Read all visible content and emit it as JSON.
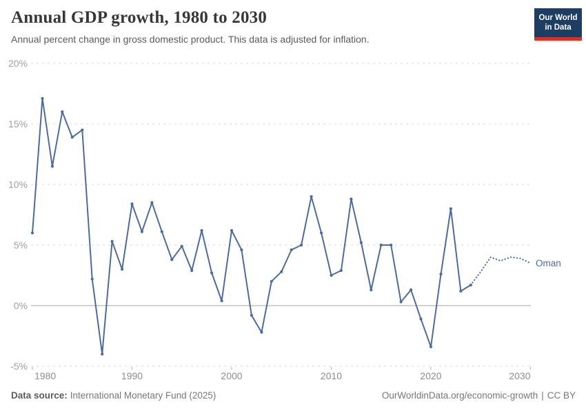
{
  "header": {
    "title": "Annual GDP growth, 1980 to 2030",
    "subtitle": "Annual percent change in gross domestic product. This data is adjusted for inflation."
  },
  "logo": {
    "line1": "Our World",
    "line2": "in Data",
    "bg_color": "#1d3d63",
    "bar_color": "#dc2f23"
  },
  "chart_data": {
    "type": "line",
    "title": "Annual GDP growth, 1980 to 2030",
    "xlabel": "",
    "ylabel": "",
    "xlim": [
      1980,
      2030
    ],
    "ylim": [
      -5,
      20
    ],
    "grid": "horizontal-dashed",
    "zero_line": true,
    "legend_position": "end-of-line-label",
    "yticks": [
      {
        "value": 20,
        "label": "20%"
      },
      {
        "value": 15,
        "label": "15%"
      },
      {
        "value": 10,
        "label": "10%"
      },
      {
        "value": 5,
        "label": "5%"
      },
      {
        "value": 0,
        "label": "0%"
      },
      {
        "value": -5,
        "label": "-5%"
      }
    ],
    "xticks": [
      1980,
      1990,
      2000,
      2010,
      2020,
      2030
    ],
    "series": [
      {
        "name": "Oman",
        "color": "#4c6b9c",
        "projection_start_year": 2024,
        "x": [
          1980,
          1981,
          1982,
          1983,
          1984,
          1985,
          1986,
          1987,
          1988,
          1989,
          1990,
          1991,
          1992,
          1993,
          1994,
          1995,
          1996,
          1997,
          1998,
          1999,
          2000,
          2001,
          2002,
          2003,
          2004,
          2005,
          2006,
          2007,
          2008,
          2009,
          2010,
          2011,
          2012,
          2013,
          2014,
          2015,
          2016,
          2017,
          2018,
          2019,
          2020,
          2021,
          2022,
          2023,
          2024,
          2025,
          2026,
          2027,
          2028,
          2029,
          2030
        ],
        "values": [
          6.0,
          17.1,
          11.5,
          16.0,
          13.9,
          14.5,
          2.2,
          -4.0,
          5.3,
          3.0,
          8.4,
          6.1,
          8.5,
          6.1,
          3.8,
          4.9,
          2.9,
          6.2,
          2.7,
          0.4,
          6.2,
          4.6,
          -0.8,
          -2.2,
          2.0,
          2.8,
          4.6,
          5.0,
          9.0,
          6.0,
          2.5,
          2.9,
          8.8,
          5.2,
          1.3,
          5.0,
          5.0,
          0.3,
          1.3,
          -1.1,
          -3.4,
          2.6,
          8.0,
          1.2,
          1.7,
          2.8,
          4.0,
          3.7,
          4.0,
          3.9,
          3.5
        ]
      }
    ]
  },
  "colors": {
    "line": "#4c6b9c",
    "grid": "#dadada",
    "zero_line": "#a5a5a5",
    "y_tick_text": "#a0a0a0",
    "x_tick_text": "#8c8c8c"
  },
  "footer": {
    "source_label": "Data source:",
    "source_value": "International Monetary Fund (2025)",
    "link_text": "OurWorldinData.org/economic-growth",
    "separator": "|",
    "license_text": "CC BY"
  }
}
